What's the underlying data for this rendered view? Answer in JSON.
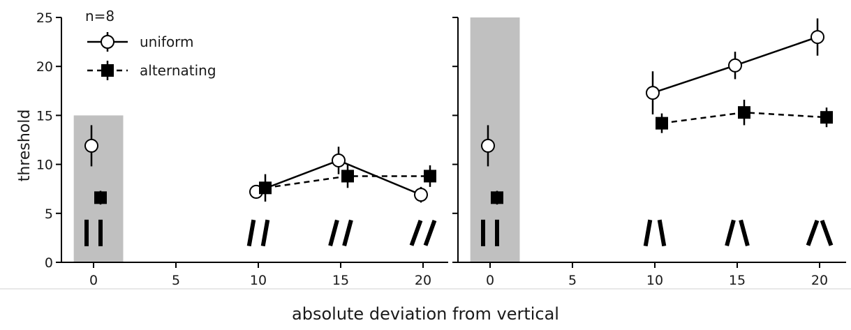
{
  "chart_data": [
    {
      "type": "line",
      "panel": "left",
      "n_label": "n=8",
      "ylabel": "threshold",
      "xlim": [
        -2,
        21
      ],
      "ylim": [
        0,
        25
      ],
      "xticks": [
        0,
        5,
        10,
        15,
        20
      ],
      "yticks": [
        0,
        5,
        10,
        15,
        20,
        25
      ],
      "shaded_region": {
        "x": [
          -1.2,
          1.8
        ],
        "y": [
          0,
          15
        ],
        "color": "#c0c0c0"
      },
      "legend": {
        "placement": "top-left",
        "entries": [
          "uniform",
          "alternating"
        ]
      },
      "series": [
        {
          "name": "uniform",
          "marker": "open-circle",
          "line": "solid",
          "points": [
            {
              "x": 0,
              "y": 11.9,
              "err": 2.1,
              "connected": false
            },
            {
              "x": 10,
              "y": 7.2,
              "err": 0.7,
              "connected": true
            },
            {
              "x": 15,
              "y": 10.4,
              "err": 1.4,
              "connected": true
            },
            {
              "x": 20,
              "y": 6.9,
              "err": 0.8,
              "connected": true
            }
          ]
        },
        {
          "name": "alternating",
          "marker": "filled-square",
          "line": "dashed",
          "points": [
            {
              "x": 0,
              "y": 6.6,
              "err": 0.7,
              "connected": false
            },
            {
              "x": 10,
              "y": 7.6,
              "err": 1.4,
              "connected": true
            },
            {
              "x": 15,
              "y": 8.8,
              "err": 1.2,
              "connected": true
            },
            {
              "x": 20,
              "y": 8.8,
              "err": 1.1,
              "connected": true
            }
          ]
        }
      ],
      "stimulus_icons": [
        {
          "x": 0,
          "angles": [
            0,
            0
          ]
        },
        {
          "x": 10,
          "angles": [
            -10,
            -10
          ]
        },
        {
          "x": 15,
          "angles": [
            -15,
            -15
          ]
        },
        {
          "x": 20,
          "angles": [
            -20,
            -20
          ]
        }
      ]
    },
    {
      "type": "line",
      "panel": "right",
      "xlim": [
        -2,
        21
      ],
      "ylim": [
        0,
        25
      ],
      "xticks": [
        0,
        5,
        10,
        15,
        20
      ],
      "yticks": [
        0,
        5,
        10,
        15,
        20,
        25
      ],
      "shaded_region": {
        "x": [
          -1.2,
          1.8
        ],
        "y": [
          0,
          25
        ],
        "color": "#c0c0c0"
      },
      "series": [
        {
          "name": "uniform",
          "marker": "open-circle",
          "line": "solid",
          "points": [
            {
              "x": 0,
              "y": 11.9,
              "err": 2.1,
              "connected": false
            },
            {
              "x": 10,
              "y": 17.3,
              "err": 2.2,
              "connected": true
            },
            {
              "x": 15,
              "y": 20.1,
              "err": 1.4,
              "connected": true
            },
            {
              "x": 20,
              "y": 23.0,
              "err": 1.9,
              "connected": true
            }
          ]
        },
        {
          "name": "alternating",
          "marker": "filled-square",
          "line": "dashed",
          "points": [
            {
              "x": 0,
              "y": 6.6,
              "err": 0.7,
              "connected": false
            },
            {
              "x": 10,
              "y": 14.2,
              "err": 1.0,
              "connected": true
            },
            {
              "x": 15,
              "y": 15.3,
              "err": 1.3,
              "connected": true
            },
            {
              "x": 20,
              "y": 14.8,
              "err": 1.0,
              "connected": true
            }
          ]
        }
      ],
      "stimulus_icons": [
        {
          "x": 0,
          "angles": [
            0,
            0
          ]
        },
        {
          "x": 10,
          "angles": [
            -10,
            10
          ]
        },
        {
          "x": 15,
          "angles": [
            -15,
            15
          ]
        },
        {
          "x": 20,
          "angles": [
            -20,
            20
          ]
        }
      ]
    }
  ],
  "shared_xlabel": "absolute deviation from vertical"
}
